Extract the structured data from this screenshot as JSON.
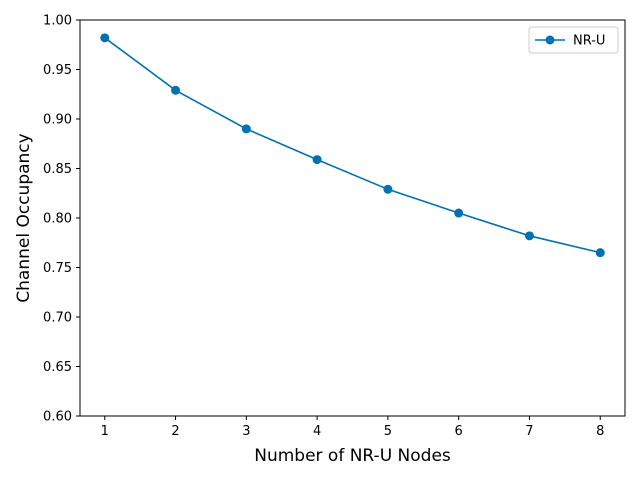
{
  "chart_data": {
    "type": "line",
    "title": "",
    "xlabel": "Number of NR-U Nodes",
    "ylabel": "Channel Occupancy",
    "x": [
      1,
      2,
      3,
      4,
      5,
      6,
      7,
      8
    ],
    "xticks": [
      "1",
      "2",
      "3",
      "4",
      "5",
      "6",
      "7",
      "8"
    ],
    "xlim": [
      0.65,
      8.35
    ],
    "ylim": [
      0.6,
      1.0
    ],
    "yticks": [
      "0.60",
      "0.65",
      "0.70",
      "0.75",
      "0.80",
      "0.85",
      "0.90",
      "0.95",
      "1.00"
    ],
    "series": [
      {
        "name": "NR-U",
        "color": "#0072b2",
        "marker": "circle",
        "values": [
          0.982,
          0.929,
          0.89,
          0.859,
          0.829,
          0.805,
          0.782,
          0.765
        ]
      }
    ],
    "grid": false,
    "legend": "top-right"
  }
}
